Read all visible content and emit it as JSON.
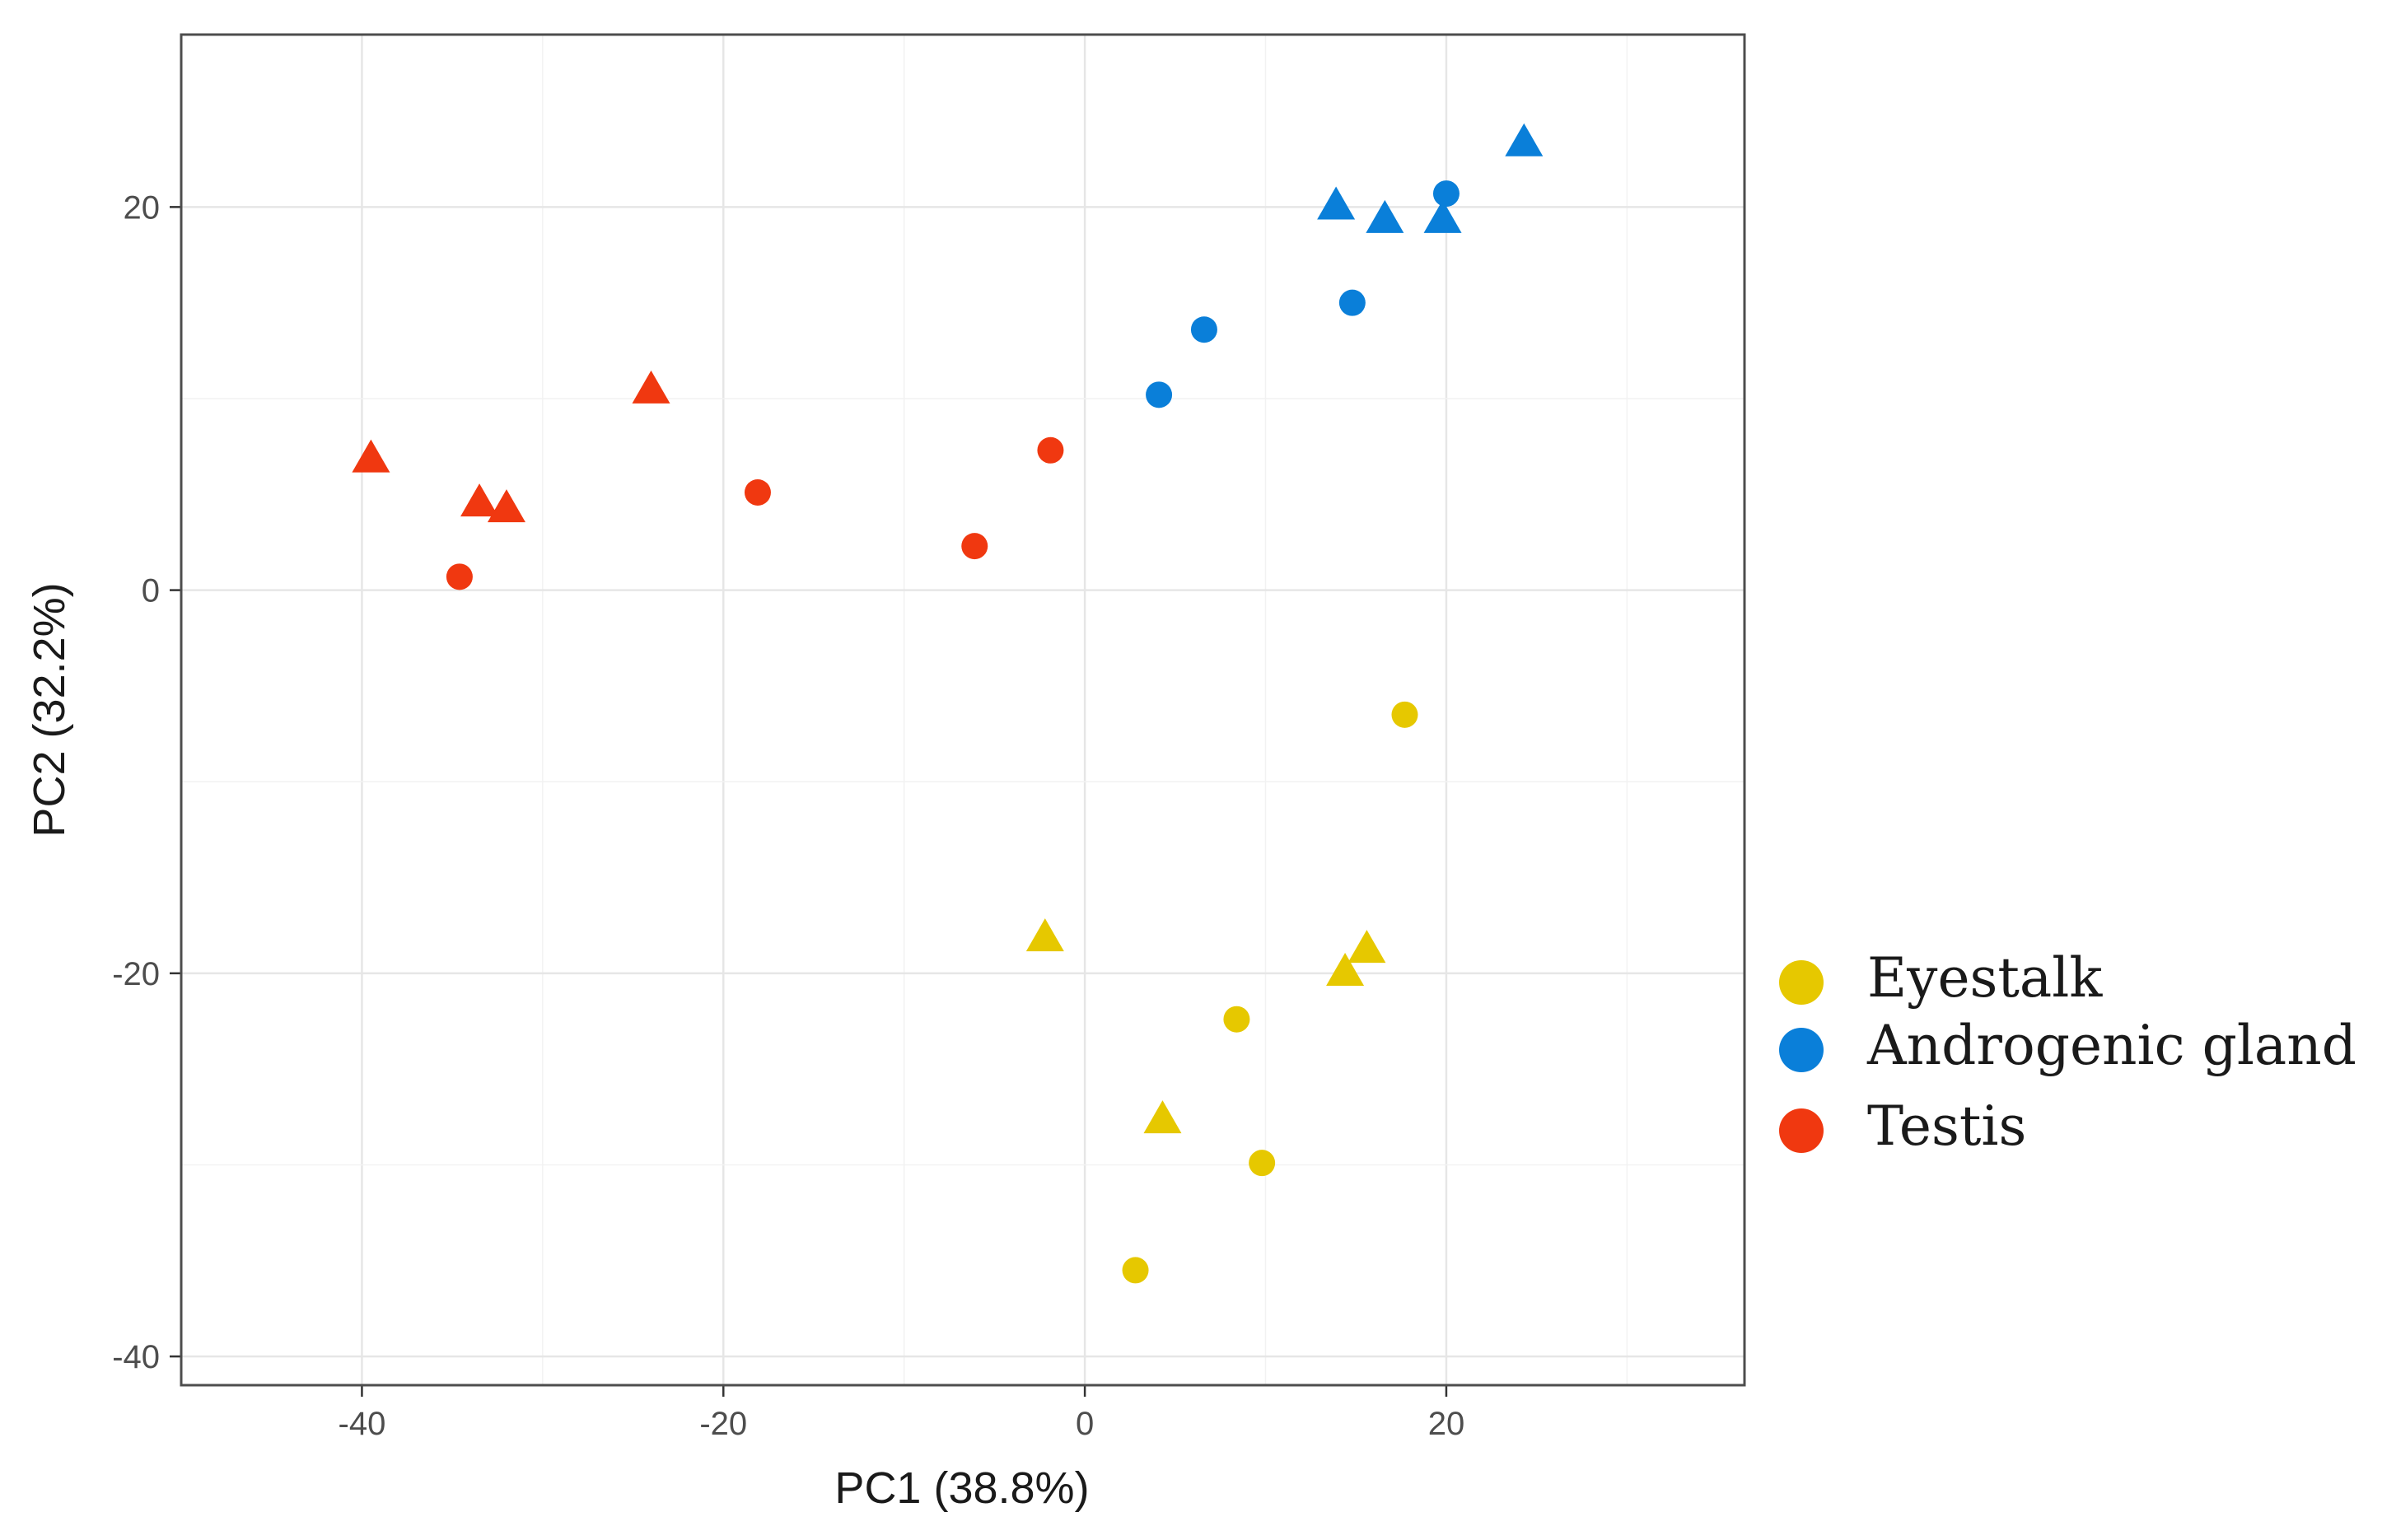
{
  "chart_data": {
    "type": "scatter",
    "title": "",
    "xlabel": "PC1 (38.8%)",
    "ylabel": "PC2 (32.2%)",
    "xlim": [
      -50,
      36.5
    ],
    "ylim": [
      -41.5,
      29
    ],
    "xticks": [
      -40,
      -20,
      0,
      20
    ],
    "yticks": [
      20,
      0,
      -20,
      -40
    ],
    "grid": true,
    "legend_position": "right",
    "shapes": [
      "triangle",
      "circle"
    ],
    "series": [
      {
        "name": "Eyestalk",
        "color": "#e6c800",
        "points": [
          {
            "x": 17.7,
            "y": -6.5,
            "shape": "circle"
          },
          {
            "x": -2.2,
            "y": -18.2,
            "shape": "triangle"
          },
          {
            "x": 15.6,
            "y": -18.8,
            "shape": "triangle"
          },
          {
            "x": 14.4,
            "y": -20.0,
            "shape": "triangle"
          },
          {
            "x": 8.4,
            "y": -22.4,
            "shape": "circle"
          },
          {
            "x": 4.3,
            "y": -27.7,
            "shape": "triangle"
          },
          {
            "x": 9.8,
            "y": -29.9,
            "shape": "circle"
          },
          {
            "x": 2.8,
            "y": -35.5,
            "shape": "circle"
          }
        ]
      },
      {
        "name": "Androgenic gland",
        "color": "#0a7fd9",
        "points": [
          {
            "x": 24.3,
            "y": 23.3,
            "shape": "triangle"
          },
          {
            "x": 20.0,
            "y": 20.7,
            "shape": "circle"
          },
          {
            "x": 13.9,
            "y": 20.0,
            "shape": "triangle"
          },
          {
            "x": 16.6,
            "y": 19.3,
            "shape": "triangle"
          },
          {
            "x": 19.8,
            "y": 19.3,
            "shape": "triangle"
          },
          {
            "x": 14.8,
            "y": 15.0,
            "shape": "circle"
          },
          {
            "x": 6.6,
            "y": 13.6,
            "shape": "circle"
          },
          {
            "x": 4.1,
            "y": 10.2,
            "shape": "circle"
          }
        ]
      },
      {
        "name": "Testis",
        "color": "#f03810",
        "points": [
          {
            "x": -24.0,
            "y": 10.4,
            "shape": "triangle"
          },
          {
            "x": -39.5,
            "y": 6.8,
            "shape": "triangle"
          },
          {
            "x": -33.5,
            "y": 4.5,
            "shape": "triangle"
          },
          {
            "x": -32.0,
            "y": 4.2,
            "shape": "triangle"
          },
          {
            "x": -1.9,
            "y": 7.3,
            "shape": "circle"
          },
          {
            "x": -18.1,
            "y": 5.1,
            "shape": "circle"
          },
          {
            "x": -6.1,
            "y": 2.3,
            "shape": "circle"
          },
          {
            "x": -34.6,
            "y": 0.7,
            "shape": "circle"
          }
        ]
      }
    ]
  }
}
